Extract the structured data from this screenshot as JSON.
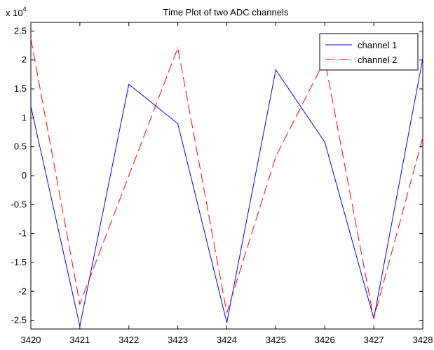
{
  "chart_data": {
    "type": "line",
    "title": "Time Plot of two ADC channels",
    "y_multiplier_label": "x 10",
    "y_multiplier_exponent": "4",
    "xlim": [
      3420,
      3428
    ],
    "ylim": [
      -2.65,
      2.65
    ],
    "x_ticks": [
      "3420",
      "3421",
      "3422",
      "3423",
      "3424",
      "3425",
      "3426",
      "3427",
      "3428"
    ],
    "y_ticks": [
      "2.5",
      "2",
      "1.5",
      "1",
      "0.5",
      "0",
      "-0.5",
      "-1",
      "-1.5",
      "-2",
      "-2.5"
    ],
    "legend_position": "top-right",
    "grid": false,
    "x": [
      3420,
      3421,
      3422,
      3423,
      3424,
      3425,
      3426,
      3427,
      3428
    ],
    "series": [
      {
        "name": "channel 1",
        "color": "#0000ff",
        "line_style": "solid",
        "values": [
          1.2,
          -2.6,
          1.58,
          0.9,
          -2.54,
          1.83,
          0.58,
          -2.47,
          2.03
        ]
      },
      {
        "name": "channel 2",
        "color": "#ff0000",
        "line_style": "dashed",
        "values": [
          2.37,
          -2.22,
          0.0,
          2.21,
          -2.37,
          0.33,
          2.0,
          -2.47,
          0.66
        ]
      }
    ]
  }
}
